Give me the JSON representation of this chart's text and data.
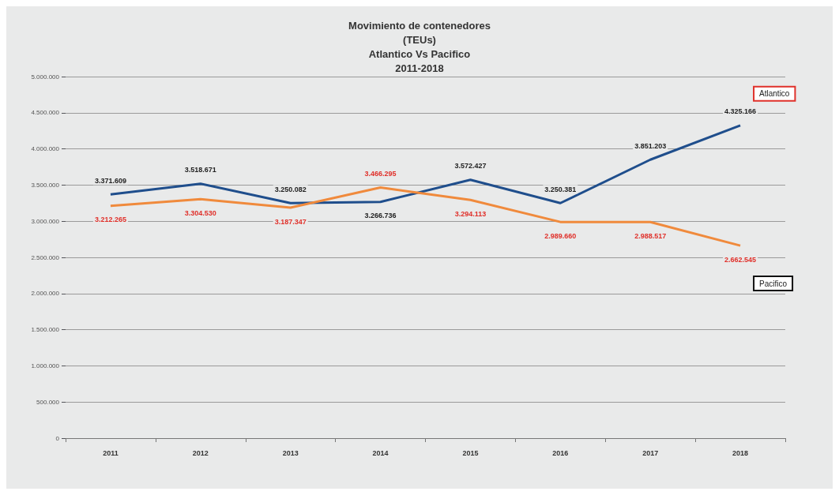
{
  "chart_data": {
    "type": "line",
    "title": "Movimiento de contenedores\n(TEUs)\nAtlantico Vs Pacifico\n2011-2018",
    "categories": [
      "2011",
      "2012",
      "2013",
      "2014",
      "2015",
      "2016",
      "2017",
      "2018"
    ],
    "series": [
      {
        "name": "Atlantico",
        "color": "#1f4e8c",
        "values": [
          3371609,
          3518671,
          3250082,
          3266736,
          3572427,
          3250381,
          3851203,
          4325166
        ],
        "value_labels": [
          "3.371.609",
          "3.518.671",
          "3.250.082",
          "3.266.736",
          "3.572.427",
          "3.250.381",
          "3.851.203",
          "4.325.166"
        ]
      },
      {
        "name": "Pacifico",
        "color": "#f08a3c",
        "values": [
          3212265,
          3304530,
          3187347,
          3466295,
          3294113,
          2989660,
          2988517,
          2662545
        ],
        "value_labels": [
          "3.212.265",
          "3.304.530",
          "3.187.347",
          "3.466.295",
          "3.294.113",
          "2.989.660",
          "2.988.517",
          "2.662.545"
        ]
      }
    ],
    "ylim": [
      0,
      5000000
    ],
    "yticks": [
      0,
      {
        "value": 500000,
        "label": "500.000"
      },
      {
        "value": 1000000,
        "label": "1.000.000"
      },
      {
        "value": 1500000,
        "label": "1.500.000"
      },
      {
        "value": 2000000,
        "label": "2.000.000"
      },
      {
        "value": 2500000,
        "label": "2.500.000"
      },
      {
        "value": 3000000,
        "label": "3.000.000"
      },
      {
        "value": 3500000,
        "label": "3.500.000"
      },
      {
        "value": 4000000,
        "label": "4.000.000"
      },
      {
        "value": 4500000,
        "label": "4.500.000"
      },
      {
        "value": 5000000,
        "label": "5.000.000"
      }
    ],
    "grid": "y",
    "legend": false,
    "marker": "none"
  }
}
